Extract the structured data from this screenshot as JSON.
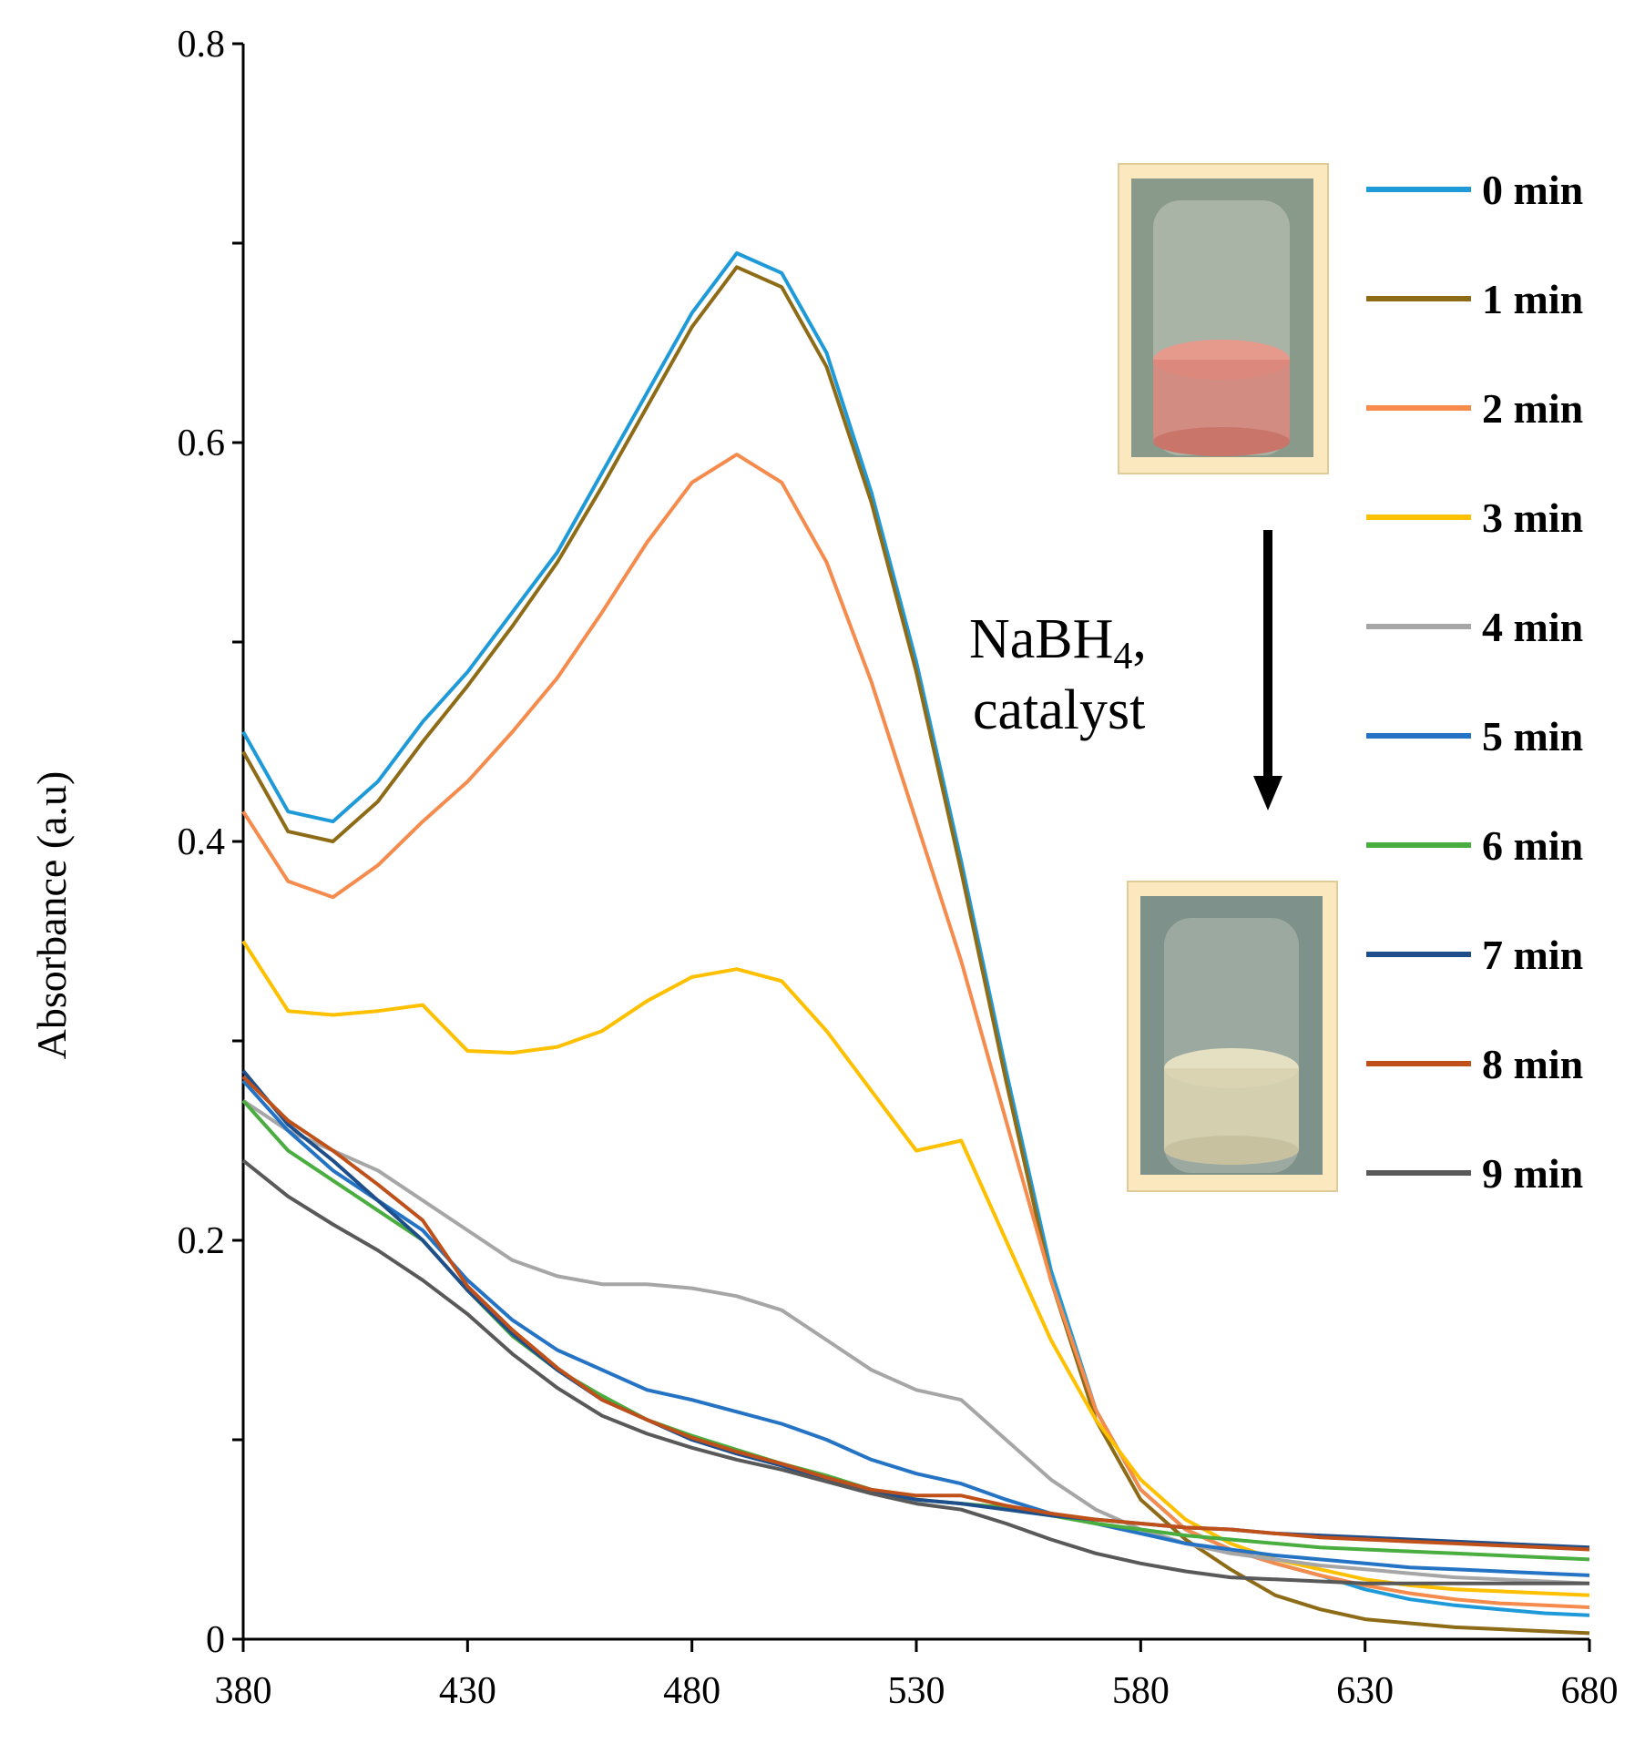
{
  "chart_data": {
    "type": "line",
    "title": "",
    "xlabel": "",
    "ylabel": "Absorbance  (a.u)",
    "xlim": [
      380,
      680
    ],
    "ylim": [
      0,
      0.8
    ],
    "xticks": [
      380,
      430,
      480,
      530,
      580,
      630,
      680
    ],
    "yticks": [
      0,
      0.2,
      0.4,
      0.6,
      0.8
    ],
    "ytick_labels": [
      "0",
      "0.2",
      "0.4",
      "0.6",
      "0.8"
    ],
    "legend_position": "right",
    "x": [
      380,
      390,
      400,
      410,
      420,
      430,
      440,
      450,
      460,
      470,
      480,
      490,
      500,
      510,
      520,
      530,
      540,
      550,
      560,
      570,
      580,
      590,
      600,
      610,
      620,
      630,
      640,
      650,
      660,
      670,
      680
    ],
    "series": [
      {
        "name": "0 min",
        "color": "#1f9ad8",
        "values": [
          0.455,
          0.415,
          0.41,
          0.43,
          0.46,
          0.485,
          0.515,
          0.545,
          0.585,
          0.625,
          0.665,
          0.695,
          0.685,
          0.645,
          0.575,
          0.49,
          0.39,
          0.285,
          0.185,
          0.115,
          0.075,
          0.055,
          0.045,
          0.038,
          0.032,
          0.025,
          0.02,
          0.017,
          0.015,
          0.013,
          0.012
        ]
      },
      {
        "name": "1 min",
        "color": "#8d6b17",
        "values": [
          0.445,
          0.405,
          0.4,
          0.42,
          0.45,
          0.478,
          0.508,
          0.54,
          0.578,
          0.618,
          0.658,
          0.688,
          0.678,
          0.638,
          0.57,
          0.485,
          0.385,
          0.28,
          0.18,
          0.11,
          0.07,
          0.05,
          0.035,
          0.022,
          0.015,
          0.01,
          0.008,
          0.006,
          0.005,
          0.004,
          0.003
        ]
      },
      {
        "name": "2 min",
        "color": "#f58b4c",
        "values": [
          0.415,
          0.38,
          0.372,
          0.388,
          0.41,
          0.43,
          0.455,
          0.482,
          0.515,
          0.55,
          0.58,
          0.594,
          0.58,
          0.54,
          0.48,
          0.41,
          0.34,
          0.26,
          0.18,
          0.115,
          0.075,
          0.055,
          0.045,
          0.038,
          0.032,
          0.027,
          0.023,
          0.02,
          0.018,
          0.017,
          0.016
        ]
      },
      {
        "name": "3 min",
        "color": "#ffc000",
        "values": [
          0.35,
          0.315,
          0.313,
          0.315,
          0.318,
          0.295,
          0.294,
          0.297,
          0.305,
          0.32,
          0.332,
          0.336,
          0.33,
          0.305,
          0.275,
          0.245,
          0.25,
          0.2,
          0.15,
          0.11,
          0.08,
          0.06,
          0.048,
          0.04,
          0.035,
          0.03,
          0.027,
          0.025,
          0.024,
          0.023,
          0.022
        ]
      },
      {
        "name": "4 min",
        "color": "#a6a6a6",
        "values": [
          0.27,
          0.255,
          0.245,
          0.235,
          0.22,
          0.205,
          0.19,
          0.182,
          0.178,
          0.178,
          0.176,
          0.172,
          0.165,
          0.15,
          0.135,
          0.125,
          0.12,
          0.1,
          0.08,
          0.065,
          0.055,
          0.048,
          0.043,
          0.04,
          0.037,
          0.035,
          0.033,
          0.031,
          0.03,
          0.029,
          0.028
        ]
      },
      {
        "name": "5 min",
        "color": "#2473c5",
        "values": [
          0.28,
          0.255,
          0.235,
          0.22,
          0.205,
          0.18,
          0.16,
          0.145,
          0.135,
          0.125,
          0.12,
          0.114,
          0.108,
          0.1,
          0.09,
          0.083,
          0.078,
          0.07,
          0.063,
          0.058,
          0.053,
          0.048,
          0.045,
          0.042,
          0.04,
          0.038,
          0.036,
          0.035,
          0.034,
          0.033,
          0.032
        ]
      },
      {
        "name": "6 min",
        "color": "#4aad3f",
        "values": [
          0.27,
          0.245,
          0.23,
          0.215,
          0.2,
          0.175,
          0.152,
          0.135,
          0.122,
          0.11,
          0.102,
          0.095,
          0.088,
          0.082,
          0.075,
          0.07,
          0.068,
          0.066,
          0.062,
          0.058,
          0.055,
          0.052,
          0.05,
          0.048,
          0.046,
          0.045,
          0.044,
          0.043,
          0.042,
          0.041,
          0.04
        ]
      },
      {
        "name": "7 min",
        "color": "#1f4f8b",
        "values": [
          0.285,
          0.258,
          0.24,
          0.22,
          0.2,
          0.175,
          0.153,
          0.135,
          0.12,
          0.11,
          0.1,
          0.093,
          0.087,
          0.08,
          0.074,
          0.07,
          0.068,
          0.065,
          0.062,
          0.06,
          0.058,
          0.056,
          0.055,
          0.053,
          0.052,
          0.051,
          0.05,
          0.049,
          0.048,
          0.047,
          0.046
        ]
      },
      {
        "name": "8 min",
        "color": "#c0501a",
        "values": [
          0.282,
          0.26,
          0.245,
          0.228,
          0.21,
          0.177,
          0.155,
          0.136,
          0.12,
          0.11,
          0.101,
          0.094,
          0.088,
          0.081,
          0.075,
          0.072,
          0.072,
          0.067,
          0.063,
          0.06,
          0.058,
          0.056,
          0.055,
          0.053,
          0.051,
          0.05,
          0.049,
          0.048,
          0.047,
          0.046,
          0.045
        ]
      },
      {
        "name": "9 min",
        "color": "#595959",
        "values": [
          0.24,
          0.222,
          0.208,
          0.195,
          0.18,
          0.163,
          0.143,
          0.126,
          0.112,
          0.103,
          0.096,
          0.09,
          0.085,
          0.079,
          0.073,
          0.068,
          0.065,
          0.058,
          0.05,
          0.043,
          0.038,
          0.034,
          0.031,
          0.03,
          0.029,
          0.028,
          0.028,
          0.028,
          0.028,
          0.028,
          0.028
        ]
      }
    ],
    "annotation": {
      "line1": "NaBH",
      "subscript": "4",
      "suffix": ",",
      "line2": "catalyst"
    }
  }
}
